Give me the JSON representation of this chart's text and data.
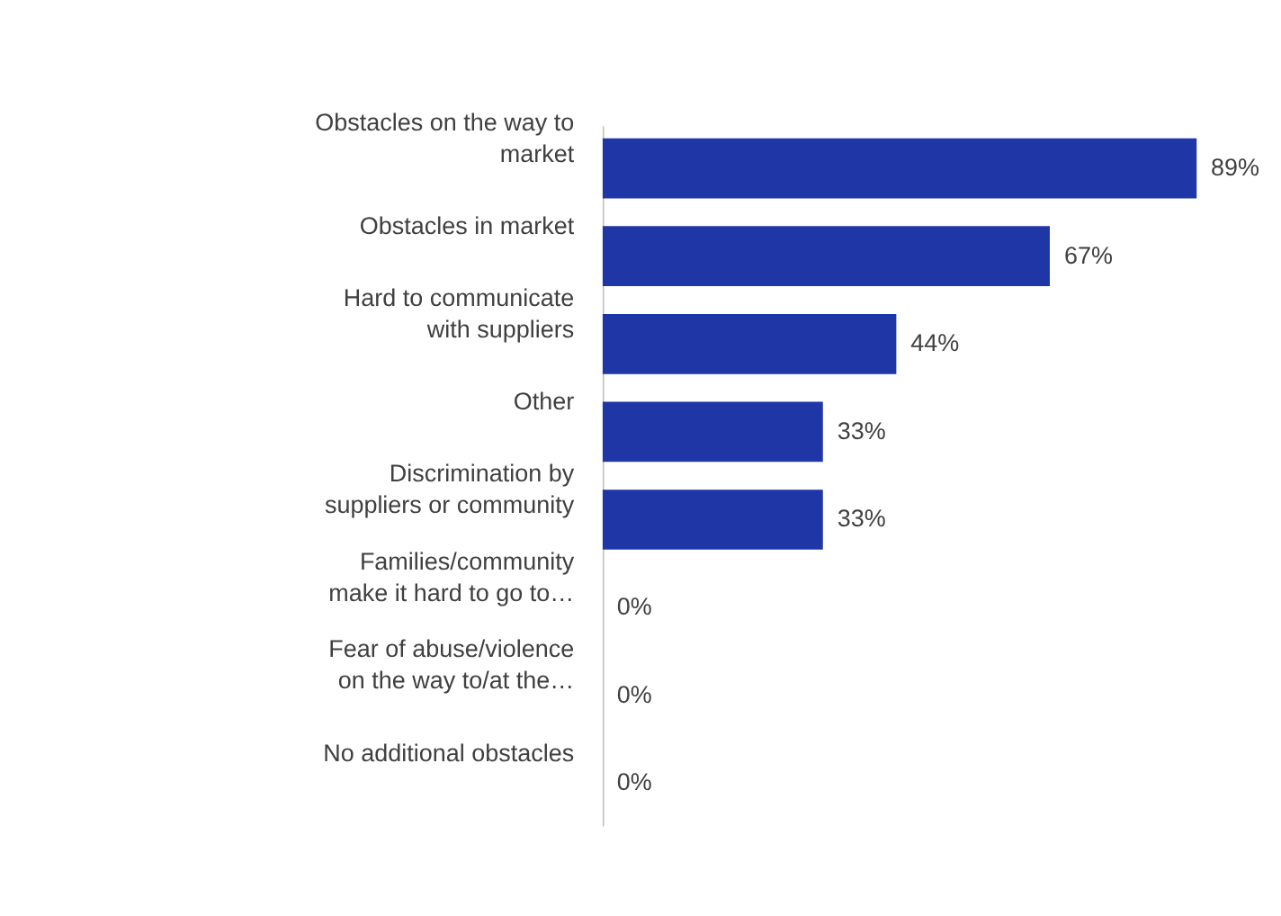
{
  "chart_data": {
    "type": "bar",
    "orientation": "horizontal",
    "categories": [
      "Obstacles on the way to\nmarket",
      "Obstacles in market",
      "Hard to communicate\nwith suppliers",
      "Other",
      "Discrimination by\nsuppliers or community",
      "Families/community\nmake it hard to go to…",
      "Fear of abuse/violence\non the way to/at the…",
      "No additional obstacles"
    ],
    "values": [
      89,
      67,
      44,
      33,
      33,
      0,
      0,
      0
    ],
    "value_labels": [
      "89%",
      "67%",
      "44%",
      "33%",
      "33%",
      "0%",
      "0%",
      "0%"
    ],
    "color": "#1f36a6",
    "grid": false
  }
}
